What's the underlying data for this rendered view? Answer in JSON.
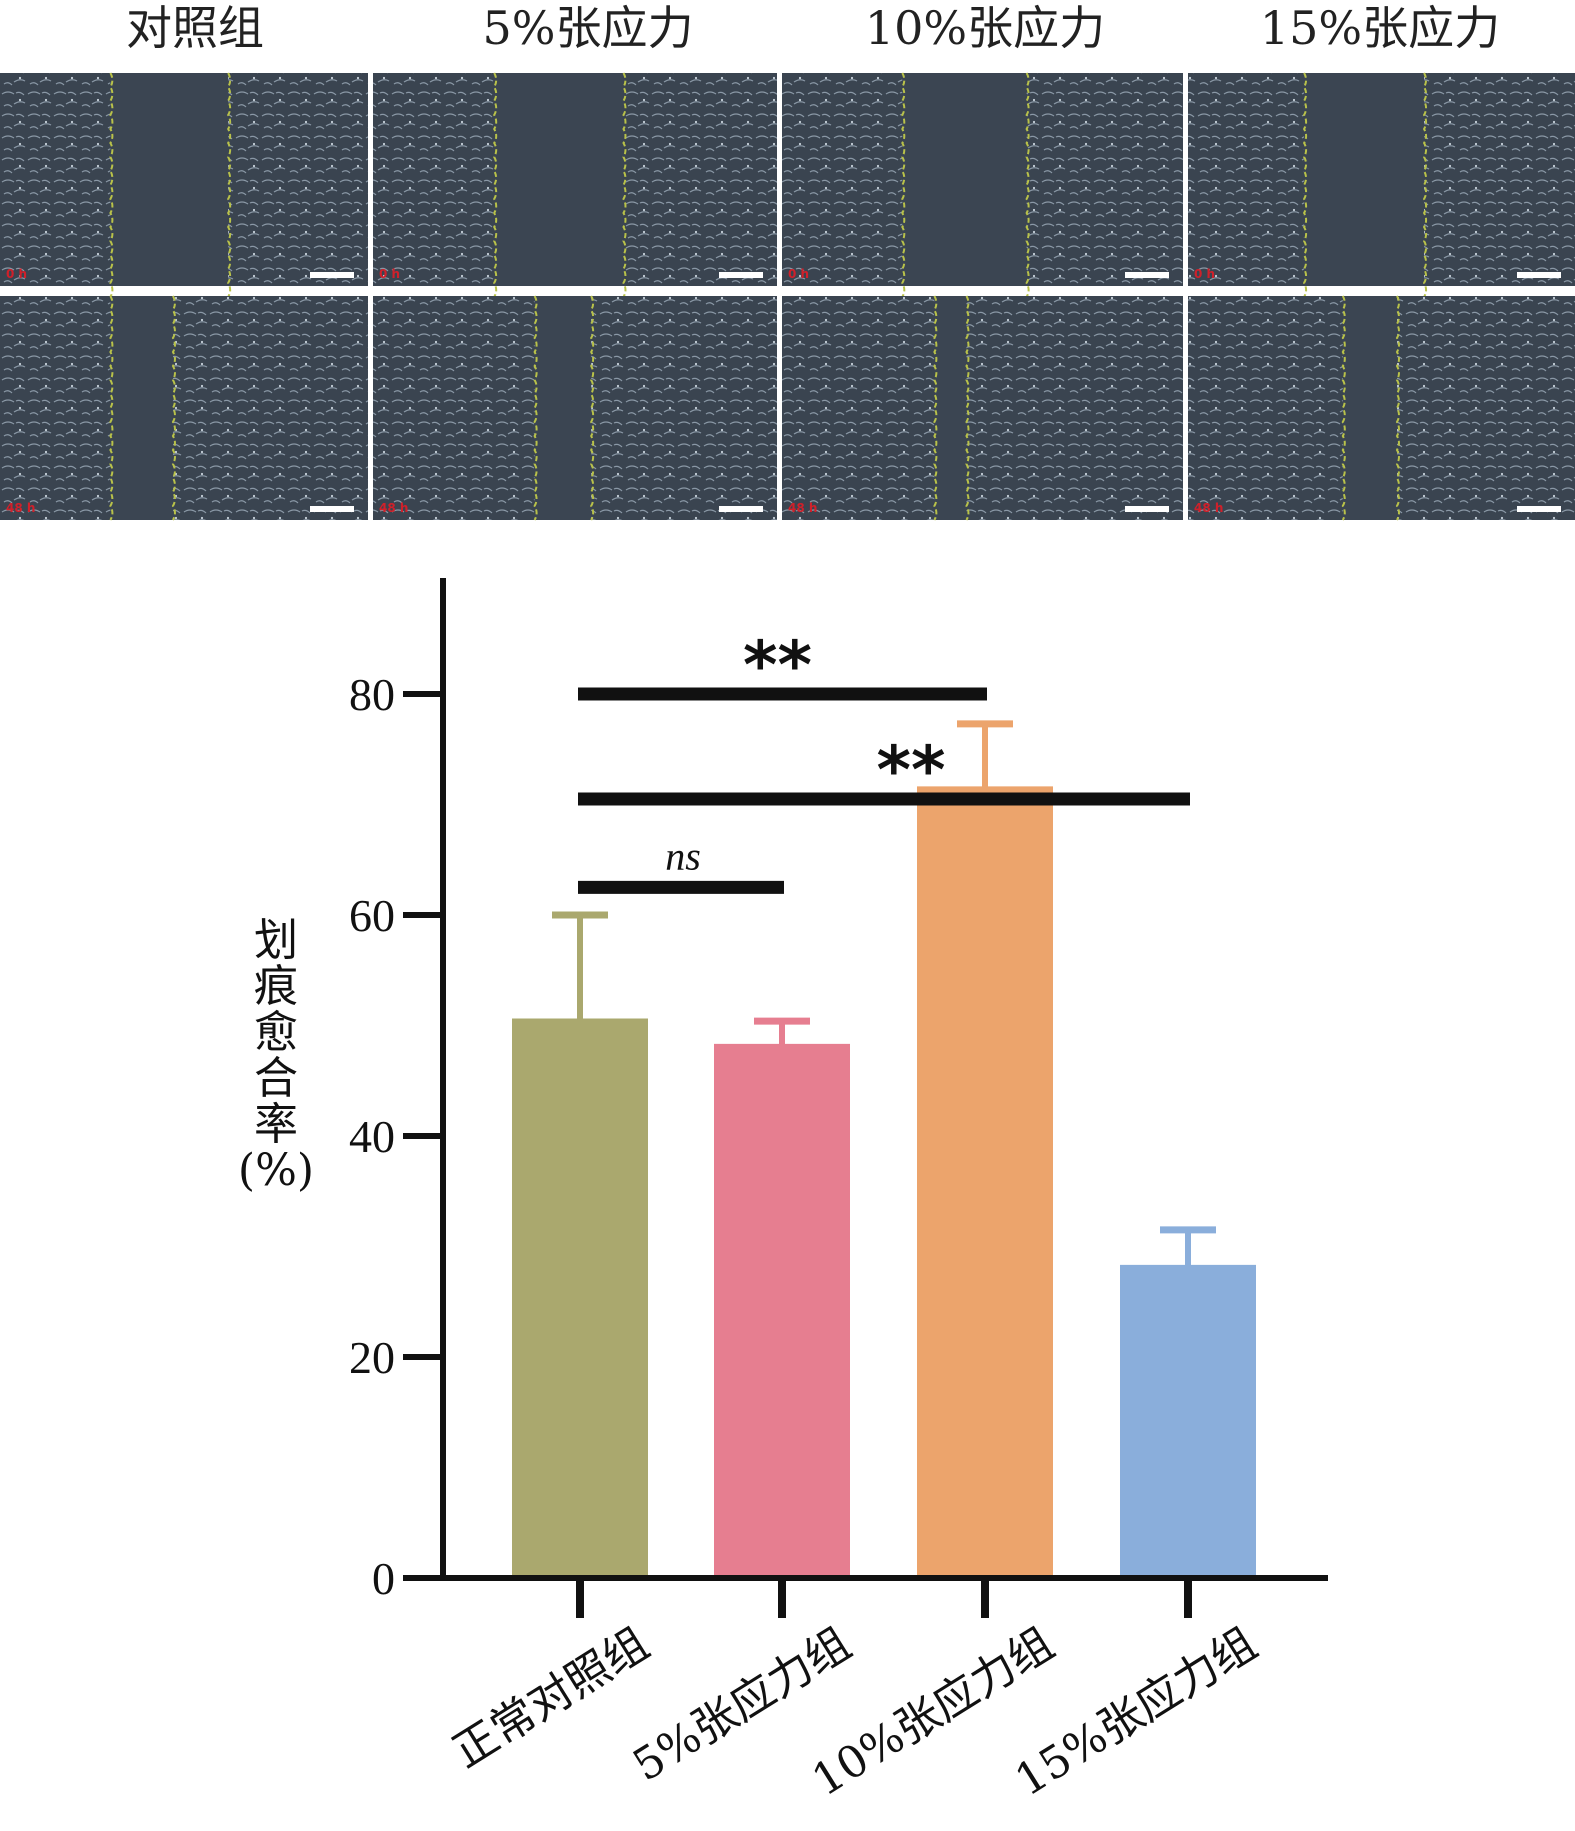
{
  "panel_titles": [
    "对照组",
    "5%张应力",
    "10%张应力",
    "15%张应力"
  ],
  "micrograph_rows": [
    {
      "time_stamp": "0 h"
    },
    {
      "time_stamp": "48 h"
    }
  ],
  "colors": {
    "bar_control": "#aaa86e",
    "bar_5": "#e67e90",
    "bar_10": "#eca46c",
    "bar_15": "#8aaedb",
    "micrograph_bg": "#3a4450",
    "cell_stroke": "#8a98a6",
    "wound_edge": "#b9c24a",
    "scale_bar": "#ffffff"
  },
  "chart_data": {
    "type": "bar",
    "categories": [
      "正常对照组",
      "5%张应力组",
      "10%张应力组",
      "15%张应力组"
    ],
    "values": [
      50.5,
      48.2,
      71.5,
      28.2
    ],
    "errors": [
      9.5,
      2.2,
      5.8,
      3.3
    ],
    "ylabel": "划痕愈合率(%)",
    "ylabel_chars": [
      "划",
      "痕",
      "愈",
      "合",
      "率",
      "(%)"
    ],
    "ylim": [
      0,
      90
    ],
    "yticks": [
      0,
      20,
      40,
      60,
      80
    ],
    "grid": false,
    "significance": [
      {
        "from": 0,
        "to": 2,
        "label": "**",
        "level": 80
      },
      {
        "from": 0,
        "to": 3,
        "label": "**",
        "level": 70.5
      },
      {
        "from": 0,
        "to": 1,
        "label": "ns",
        "level": 62.5
      }
    ]
  }
}
